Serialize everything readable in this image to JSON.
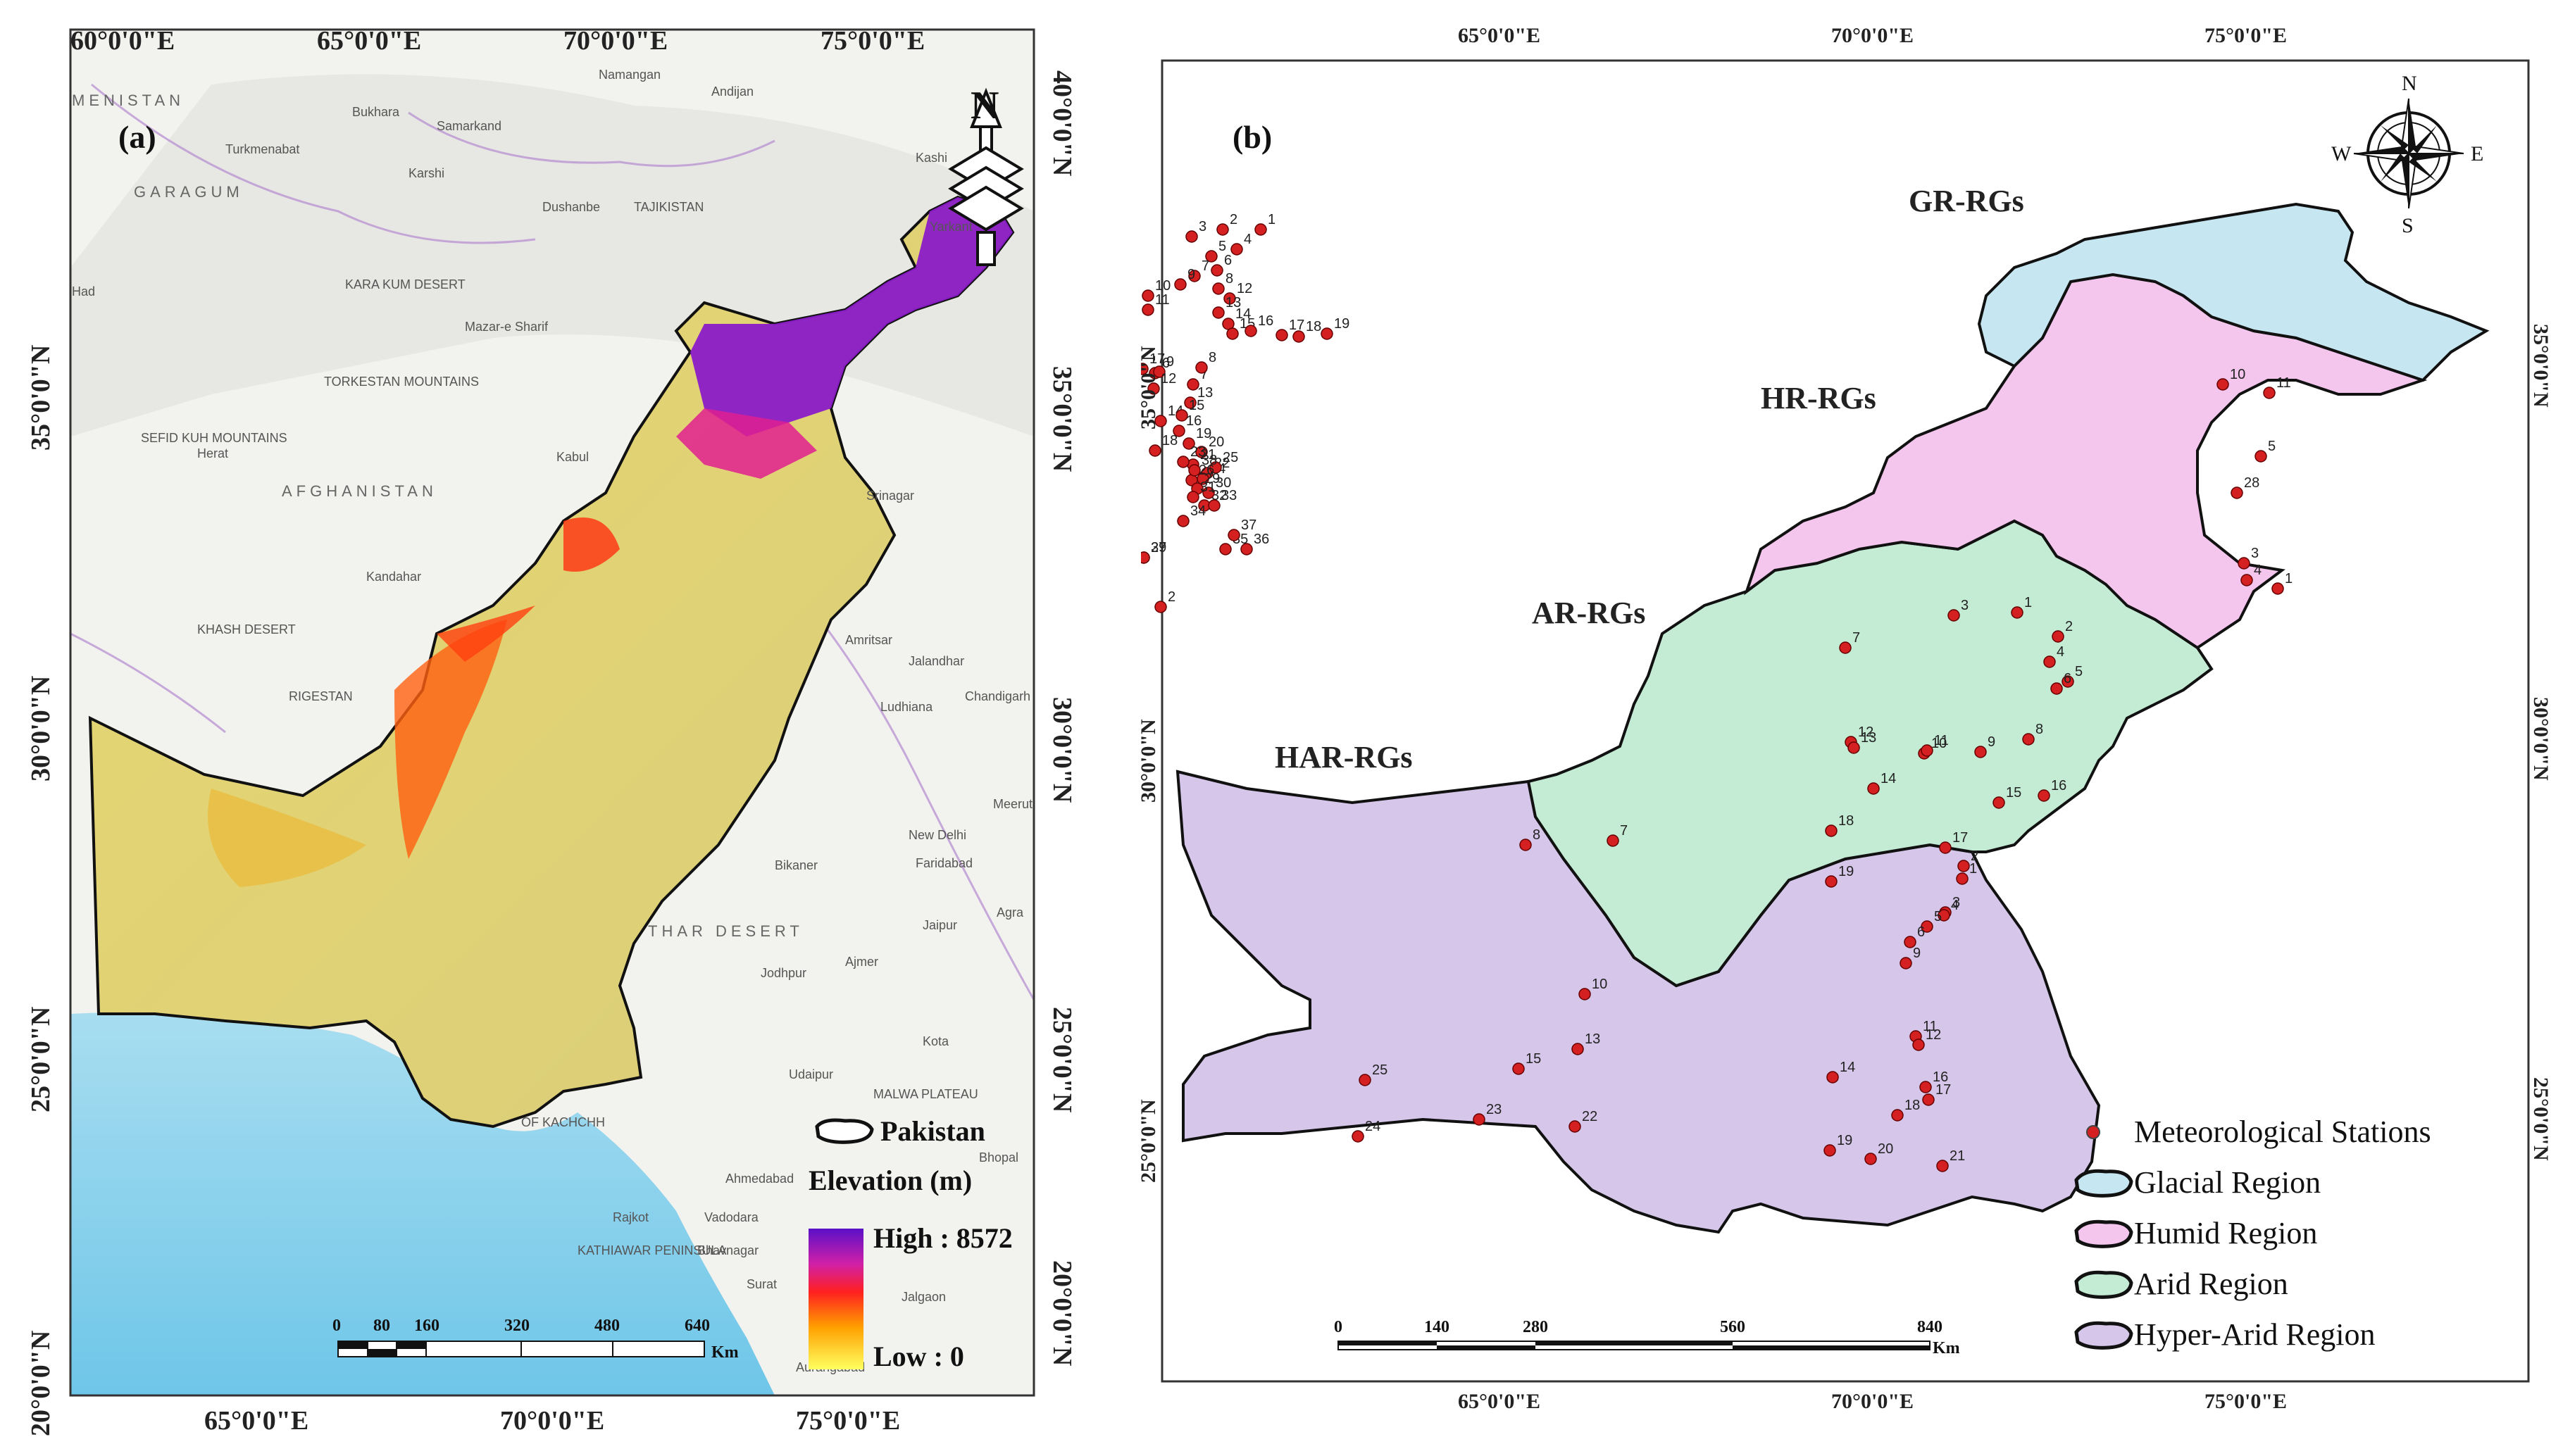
{
  "panel_a": {
    "tag": "(a)",
    "lon_labels": [
      "60°0'0\"E",
      "65°0'0\"E",
      "70°0'0\"E",
      "75°0'0\"E"
    ],
    "lon_labels_bottom": [
      "65°0'0\"E",
      "70°0'0\"E",
      "75°0'0\"E"
    ],
    "lat_labels_left": [
      "35°0'0\"N",
      "30°0'0\"N",
      "25°0'0\"N",
      "20°0'0\"N"
    ],
    "lat_labels_right": [
      "40°0'0\"N",
      "35°0'0\"N",
      "30°0'0\"N",
      "25°0'0\"N",
      "20°0'0\"N"
    ],
    "places": [
      "MENISTAN",
      "GARAGUM",
      "Bukhara",
      "Samarkand",
      "Turkmenabat",
      "Karshi",
      "Dushanbe",
      "TAJIKISTAN",
      "KARA KUM DESERT",
      "Mazar-e Sharif",
      "TORKESTAN MOUNTAINS",
      "SEFID KUH MOUNTAINS",
      "Herat",
      "AFGHANISTAN",
      "Kabul",
      "Srinagar",
      "Kandahar",
      "KHASH DESERT",
      "RIGESTAN",
      "Amritsar",
      "Jalandhar",
      "Ludhiana",
      "Chandigarh",
      "Meerut",
      "New Delhi",
      "Faridabad",
      "Bikaner",
      "THAR DESERT",
      "Jaipur",
      "Agra",
      "Jodhpur",
      "Ajmer",
      "Kota",
      "Udaipur",
      "MALWA PLATEAU",
      "OF KACHCHH",
      "Ahmedabad",
      "Bhopal",
      "Rajkot",
      "Vadodara",
      "KATHIAWAR PENINSULA",
      "Bhavnagar",
      "Surat",
      "Jalgaon",
      "Aurangabad",
      "Namangan",
      "Andijan",
      "Kashi",
      "Yarkant",
      "Had"
    ],
    "legend": {
      "pakistan_label": "Pakistan",
      "elevation_title": "Elevation (m)",
      "high_label": "High : 8572",
      "low_label": "Low : 0"
    },
    "scale_labels": [
      "0",
      "80",
      "160",
      "320",
      "480",
      "640"
    ],
    "scale_unit": "Km",
    "north_label": "N"
  },
  "panel_b": {
    "tag": "(b)",
    "lon_labels": [
      "65°0'0\"E",
      "70°0'0\"E",
      "75°0'0\"E"
    ],
    "lat_labels": [
      "35°0'0\"N",
      "30°0'0\"N",
      "25°0'0\"N"
    ],
    "compass": {
      "n": "N",
      "s": "S",
      "e": "E",
      "w": "W"
    },
    "regions": [
      {
        "label": "GR-RGs",
        "color": "#c6e6f2"
      },
      {
        "label": "HR-RGs",
        "color": "#f4c6ee"
      },
      {
        "label": "AR-RGs",
        "color": "#c4ecd4"
      },
      {
        "label": "HAR-RGs",
        "color": "#d6c6ea"
      }
    ],
    "legend": {
      "stations": "Meteorological Stations",
      "glacial": "Glacial Region",
      "humid": "Humid Region",
      "arid": "Arid Region",
      "hyper_arid": "Hyper-Arid Region"
    },
    "scale_labels": [
      "0",
      "140",
      "280",
      "560",
      "840"
    ],
    "scale_unit": "Km",
    "station_color": "#d42020",
    "stations_gr": [
      "1",
      "2",
      "3",
      "4",
      "5",
      "6",
      "7",
      "8",
      "9",
      "10",
      "11",
      "12",
      "13",
      "14",
      "15",
      "16",
      "17",
      "18",
      "19"
    ],
    "stations_hr": [
      "1",
      "2",
      "3",
      "4",
      "5",
      "6",
      "7",
      "8",
      "9",
      "10",
      "11",
      "12",
      "13",
      "14",
      "15",
      "16",
      "17",
      "18",
      "19",
      "20",
      "21",
      "22",
      "23",
      "24",
      "25",
      "26",
      "27",
      "28",
      "29",
      "30",
      "31",
      "32",
      "33",
      "34",
      "35",
      "36",
      "37",
      "38",
      "39"
    ],
    "stations_ar": [
      "1",
      "2",
      "3",
      "4",
      "5",
      "6",
      "7",
      "8",
      "9",
      "10",
      "11",
      "12",
      "13",
      "14",
      "15",
      "16",
      "17",
      "18",
      "19"
    ],
    "stations_har": [
      "1",
      "2",
      "3",
      "4",
      "5",
      "6",
      "7",
      "8",
      "9",
      "10",
      "11",
      "12",
      "13",
      "14",
      "15",
      "16",
      "17",
      "18",
      "19",
      "20",
      "21",
      "22",
      "23",
      "24",
      "25"
    ]
  }
}
